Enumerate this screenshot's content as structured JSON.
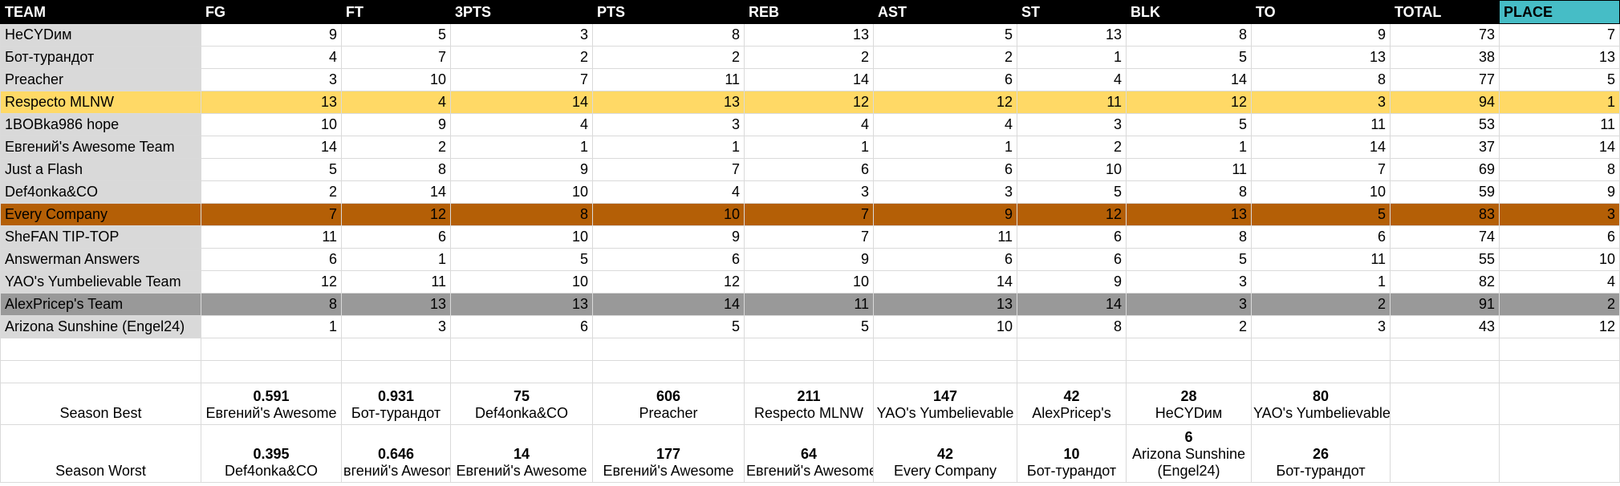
{
  "headers": [
    "TEAM",
    "FG",
    "FT",
    "3PTS",
    "PTS",
    "REB",
    "AST",
    "ST",
    "BLK",
    "TO",
    "TOTAL",
    "PLACE"
  ],
  "teams": [
    {
      "name": "НеСYDим",
      "values": [
        "9",
        "5",
        "3",
        "8",
        "13",
        "5",
        "13",
        "8",
        "9",
        "73",
        "7"
      ],
      "highlight": ""
    },
    {
      "name": "Бот-турандот",
      "values": [
        "4",
        "7",
        "2",
        "2",
        "2",
        "2",
        "1",
        "5",
        "13",
        "38",
        "13"
      ],
      "highlight": ""
    },
    {
      "name": "Preacher",
      "values": [
        "3",
        "10",
        "7",
        "11",
        "14",
        "6",
        "4",
        "14",
        "8",
        "77",
        "5"
      ],
      "highlight": ""
    },
    {
      "name": "Respecto MLNW",
      "values": [
        "13",
        "4",
        "14",
        "13",
        "12",
        "12",
        "11",
        "12",
        "3",
        "94",
        "1"
      ],
      "highlight": "gold"
    },
    {
      "name": "1BOBka986 hope",
      "values": [
        "10",
        "9",
        "4",
        "3",
        "4",
        "4",
        "3",
        "5",
        "11",
        "53",
        "11"
      ],
      "highlight": ""
    },
    {
      "name": "Евгений's Awesome Team",
      "values": [
        "14",
        "2",
        "1",
        "1",
        "1",
        "1",
        "2",
        "1",
        "14",
        "37",
        "14"
      ],
      "highlight": ""
    },
    {
      "name": "Just a Flash",
      "values": [
        "5",
        "8",
        "9",
        "7",
        "6",
        "6",
        "10",
        "11",
        "7",
        "69",
        "8"
      ],
      "highlight": ""
    },
    {
      "name": "Def4onka&CO",
      "values": [
        "2",
        "14",
        "10",
        "4",
        "3",
        "3",
        "5",
        "8",
        "10",
        "59",
        "9"
      ],
      "highlight": ""
    },
    {
      "name": "Every Company",
      "values": [
        "7",
        "12",
        "8",
        "10",
        "7",
        "9",
        "12",
        "13",
        "5",
        "83",
        "3"
      ],
      "highlight": "bronze"
    },
    {
      "name": "SheFAN TIP-TOP",
      "values": [
        "11",
        "6",
        "10",
        "9",
        "7",
        "11",
        "6",
        "8",
        "6",
        "74",
        "6"
      ],
      "highlight": ""
    },
    {
      "name": "Answerman Answers",
      "values": [
        "6",
        "1",
        "5",
        "6",
        "9",
        "6",
        "6",
        "5",
        "11",
        "55",
        "10"
      ],
      "highlight": ""
    },
    {
      "name": "YAO's Yumbelievable Team",
      "values": [
        "12",
        "11",
        "10",
        "12",
        "10",
        "14",
        "9",
        "3",
        "1",
        "82",
        "4"
      ],
      "highlight": ""
    },
    {
      "name": "AlexPricep's Team",
      "values": [
        "8",
        "13",
        "13",
        "14",
        "11",
        "13",
        "14",
        "3",
        "2",
        "91",
        "2"
      ],
      "highlight": "silver"
    },
    {
      "name": "Arizona Sunshine (Engel24)",
      "values": [
        "1",
        "3",
        "6",
        "5",
        "5",
        "10",
        "8",
        "2",
        "3",
        "43",
        "12"
      ],
      "highlight": ""
    }
  ],
  "season_best": {
    "label": "Season Best",
    "stats": [
      {
        "value": "0.591",
        "team": "Евгений's Awesome"
      },
      {
        "value": "0.931",
        "team": "Бот-турандот"
      },
      {
        "value": "75",
        "team": "Def4onka&CO"
      },
      {
        "value": "606",
        "team": "Preacher"
      },
      {
        "value": "211",
        "team": "Respecto MLNW"
      },
      {
        "value": "147",
        "team": "YAO's Yumbelievable"
      },
      {
        "value": "42",
        "team": "AlexPricep's"
      },
      {
        "value": "28",
        "team": "НеСYDим"
      },
      {
        "value": "80",
        "team": "YAO's Yumbelievable"
      }
    ]
  },
  "season_worst": {
    "label": "Season Worst",
    "stats": [
      {
        "value": "0.395",
        "team": "Def4onka&CO"
      },
      {
        "value": "0.646",
        "team": "вгений's Awesom"
      },
      {
        "value": "14",
        "team": "Евгений's Awesome"
      },
      {
        "value": "177",
        "team": "Евгений's Awesome"
      },
      {
        "value": "64",
        "team": "Евгений's Awesome"
      },
      {
        "value": "42",
        "team": "Every Company"
      },
      {
        "value": "10",
        "team": "Бот-турандот"
      },
      {
        "value": "6",
        "team": "Arizona Sunshine (Engel24)"
      },
      {
        "value": "26",
        "team": "Бот-турандот"
      }
    ]
  }
}
